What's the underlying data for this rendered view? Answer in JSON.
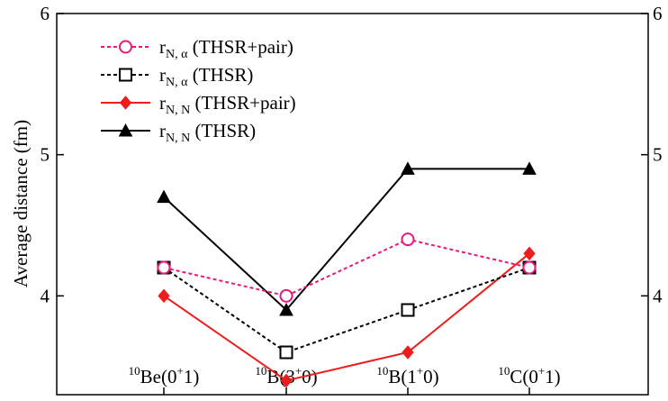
{
  "chart_data": {
    "type": "line",
    "ylabel": "Average distance (fm)",
    "ylim": [
      3.3,
      6.0
    ],
    "yticks": [
      4,
      5,
      6
    ],
    "right_ticks": [
      "4",
      "5",
      "6"
    ],
    "categories": [
      {
        "sup": "10",
        "main": "Be(0",
        "sup2": "+",
        "tail": "1)"
      },
      {
        "sup": "10",
        "main": "B(3",
        "sup2": "+",
        "tail": "0)"
      },
      {
        "sup": "10",
        "main": "B(1",
        "sup2": "+",
        "tail": "0)"
      },
      {
        "sup": "10",
        "main": "C(0",
        "sup2": "+",
        "tail": "1)"
      }
    ],
    "legend_position": "top-left",
    "grid": false,
    "series": [
      {
        "symbol": "r",
        "sub": "N, α",
        "rest": " (THSR+pair)",
        "color": "#e8197a",
        "dash": "4,3",
        "marker": "circle-open",
        "values": [
          4.2,
          4.0,
          4.4,
          4.2
        ]
      },
      {
        "symbol": "r",
        "sub": "N, α",
        "rest": " (THSR)",
        "color": "#000000",
        "dash": "4,3",
        "marker": "square-open",
        "values": [
          4.2,
          3.6,
          3.9,
          4.2
        ]
      },
      {
        "symbol": "r",
        "sub": "N, N",
        "rest": " (THSR+pair)",
        "color": "#ee1c1c",
        "dash": "",
        "marker": "diamond-filled",
        "values": [
          4.0,
          3.4,
          3.6,
          4.3
        ]
      },
      {
        "symbol": "r",
        "sub": "N, N",
        "rest": " (THSR)",
        "color": "#000000",
        "dash": "",
        "marker": "triangle-filled",
        "values": [
          4.7,
          3.9,
          4.9,
          4.9
        ]
      }
    ]
  }
}
